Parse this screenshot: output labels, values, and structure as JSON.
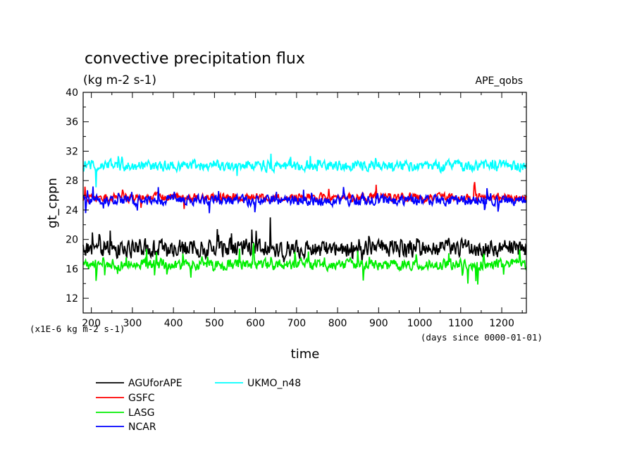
{
  "chart_data": {
    "type": "line",
    "title": "convective precipitation flux",
    "subtitle": "(kg m-2 s-1)",
    "experiment_label": "APE_qobs",
    "ylabel": "gt_cppn",
    "xlabel": "time",
    "y_unit_note": "(x1E-6 kg m-2 s-1)",
    "x_unit_note": "(days since 0000-01-01)",
    "xlim": [
      180,
      1260
    ],
    "ylim": [
      10,
      40
    ],
    "x_ticks": [
      200,
      300,
      400,
      500,
      600,
      700,
      800,
      900,
      1000,
      1100,
      1200
    ],
    "x_tick_labels": [
      "200",
      "300",
      "400",
      "500",
      "600",
      "700",
      "800",
      "900",
      "1000",
      "1100",
      "1200"
    ],
    "y_ticks": [
      12,
      16,
      20,
      24,
      28,
      32,
      36,
      40
    ],
    "y_tick_labels": [
      "12",
      "16",
      "20",
      "24",
      "28",
      "32",
      "36",
      "40"
    ],
    "grid": false,
    "legend_position": "bottom-left, below plot",
    "series": [
      {
        "name": "AGUforAPE",
        "color": "#000000",
        "mean": 18.8,
        "amplitude": 1.6,
        "min": 16.5,
        "max": 23.0
      },
      {
        "name": "GSFC",
        "color": "#ff0000",
        "mean": 25.7,
        "amplitude": 0.8,
        "min": 24.0,
        "max": 27.8
      },
      {
        "name": "LASG",
        "color": "#00ee00",
        "mean": 16.6,
        "amplitude": 1.0,
        "min": 13.5,
        "max": 19.5
      },
      {
        "name": "NCAR",
        "color": "#0000ff",
        "mean": 25.3,
        "amplitude": 0.9,
        "min": 22.8,
        "max": 27.8
      },
      {
        "name": "UKMO_n48",
        "color": "#00ffff",
        "mean": 30.0,
        "amplitude": 1.0,
        "min": 27.0,
        "max": 32.5
      }
    ]
  }
}
